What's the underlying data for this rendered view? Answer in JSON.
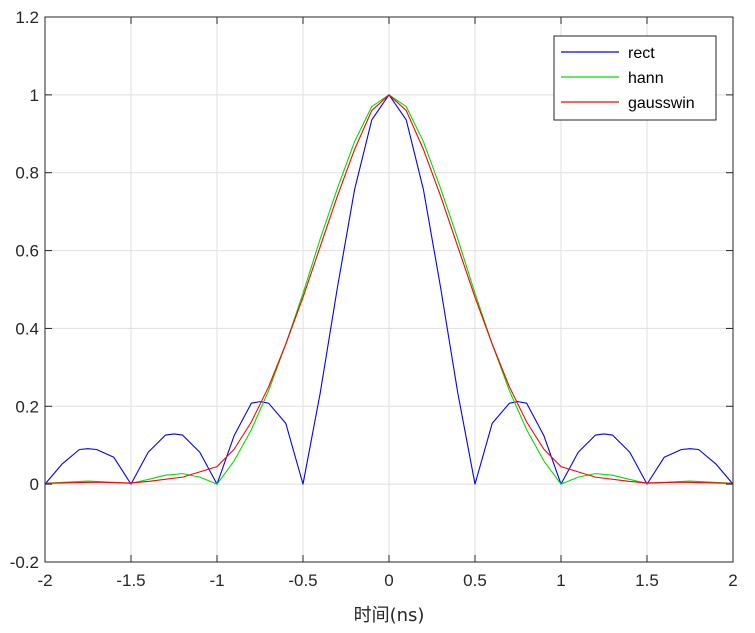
{
  "chart_data": {
    "type": "line",
    "title": "",
    "xlabel": "时间(ns)",
    "ylabel": "",
    "xlim": [
      -2,
      2
    ],
    "ylim": [
      -0.2,
      1.2
    ],
    "xticks": [
      -2,
      -1.5,
      -1,
      -0.5,
      0,
      0.5,
      1,
      1.5,
      2
    ],
    "yticks": [
      -0.2,
      0,
      0.2,
      0.4,
      0.6,
      0.8,
      1,
      1.2
    ],
    "xtick_labels": [
      "-2",
      "-1.5",
      "-1",
      "-0.5",
      "0",
      "0.5",
      "1",
      "1.5",
      "2"
    ],
    "ytick_labels": [
      "-0.2",
      "0",
      "0.2",
      "0.4",
      "0.6",
      "0.8",
      "1",
      "1.2"
    ],
    "grid": true,
    "legend_position": "top-right",
    "series": [
      {
        "name": "rect",
        "color": "#0000ff",
        "x": [
          -2,
          -1.9,
          -1.8,
          -1.75,
          -1.7,
          -1.6,
          -1.5,
          -1.4,
          -1.3,
          -1.25,
          -1.2,
          -1.1,
          -1,
          -0.9,
          -0.8,
          -0.75,
          -0.7,
          -0.6,
          -0.5,
          -0.4,
          -0.3,
          -0.2,
          -0.1,
          0,
          0.1,
          0.2,
          0.3,
          0.4,
          0.5,
          0.6,
          0.7,
          0.75,
          0.8,
          0.9,
          1,
          1.1,
          1.2,
          1.25,
          1.3,
          1.4,
          1.5,
          1.6,
          1.7,
          1.75,
          1.8,
          1.9,
          2
        ],
        "y": [
          0,
          0.052,
          0.089,
          0.091,
          0.089,
          0.069,
          0,
          0.082,
          0.126,
          0.129,
          0.126,
          0.082,
          0,
          0.125,
          0.208,
          0.212,
          0.208,
          0.156,
          0,
          0.234,
          0.505,
          0.757,
          0.936,
          1,
          0.936,
          0.757,
          0.505,
          0.234,
          0,
          0.156,
          0.208,
          0.212,
          0.208,
          0.125,
          0,
          0.082,
          0.126,
          0.129,
          0.126,
          0.082,
          0,
          0.069,
          0.089,
          0.091,
          0.089,
          0.052,
          0
        ]
      },
      {
        "name": "hann",
        "color": "#00dd00",
        "x": [
          -2,
          -1.75,
          -1.5,
          -1.4,
          -1.3,
          -1.2,
          -1.1,
          -1,
          -0.9,
          -0.8,
          -0.7,
          -0.6,
          -0.5,
          -0.4,
          -0.3,
          -0.2,
          -0.1,
          0,
          0.1,
          0.2,
          0.3,
          0.4,
          0.5,
          0.6,
          0.7,
          0.8,
          0.9,
          1,
          1.1,
          1.2,
          1.3,
          1.4,
          1.5,
          1.75,
          2
        ],
        "y": [
          0.002,
          0.008,
          0.002,
          0.012,
          0.023,
          0.027,
          0.018,
          0,
          0.06,
          0.14,
          0.24,
          0.36,
          0.49,
          0.63,
          0.76,
          0.88,
          0.97,
          1,
          0.97,
          0.88,
          0.76,
          0.63,
          0.49,
          0.36,
          0.24,
          0.14,
          0.06,
          0,
          0.018,
          0.027,
          0.023,
          0.012,
          0.002,
          0.008,
          0.002
        ]
      },
      {
        "name": "gausswin",
        "color": "#ff0000",
        "x": [
          -2,
          -1.7,
          -1.5,
          -1.4,
          -1.2,
          -1,
          -0.9,
          -0.8,
          -0.7,
          -0.6,
          -0.5,
          -0.4,
          -0.3,
          -0.2,
          -0.1,
          0,
          0.1,
          0.2,
          0.3,
          0.4,
          0.5,
          0.6,
          0.7,
          0.8,
          0.9,
          1,
          1.2,
          1.4,
          1.5,
          1.7,
          2
        ],
        "y": [
          0.002,
          0.005,
          0.003,
          0.007,
          0.018,
          0.045,
          0.09,
          0.16,
          0.25,
          0.36,
          0.48,
          0.61,
          0.74,
          0.86,
          0.96,
          1,
          0.96,
          0.86,
          0.74,
          0.61,
          0.48,
          0.36,
          0.25,
          0.16,
          0.09,
          0.045,
          0.018,
          0.007,
          0.003,
          0.005,
          0.002
        ]
      }
    ]
  }
}
